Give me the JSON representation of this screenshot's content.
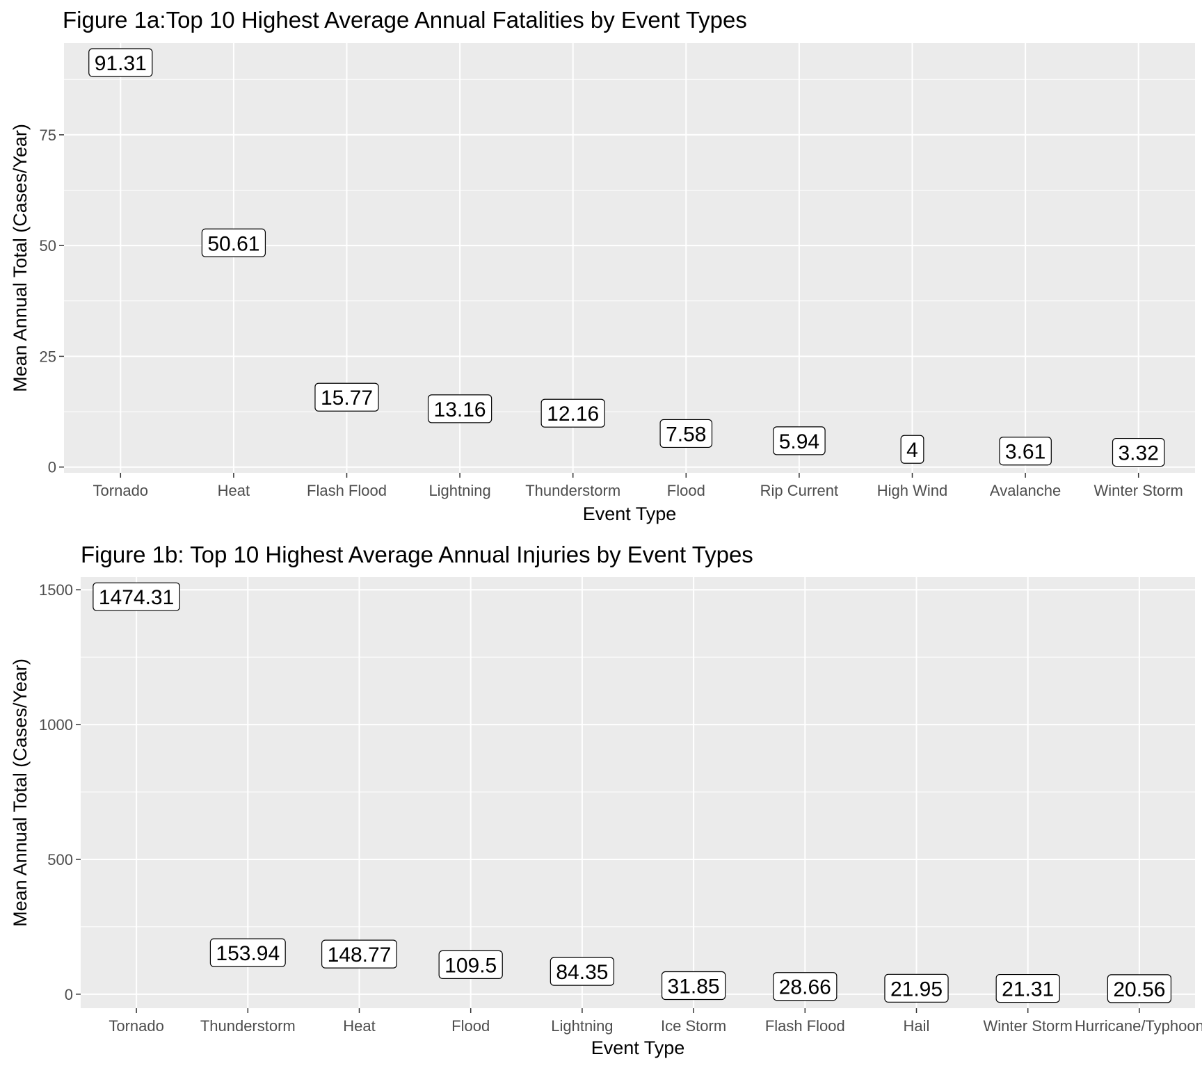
{
  "chart_data": [
    {
      "type": "scatter",
      "geom": "label",
      "title": "Figure 1a:Top 10 Highest Average Annual Fatalities by Event Types",
      "xlabel": "Event Type",
      "ylabel": "Mean Annual Total (Cases/Year)",
      "categories": [
        "Tornado",
        "Heat",
        "Flash Flood",
        "Lightning",
        "Thunderstorm",
        "Flood",
        "Rip Current",
        "High Wind",
        "Avalanche",
        "Winter Storm"
      ],
      "values": [
        91.31,
        50.61,
        15.77,
        13.16,
        12.16,
        7.58,
        5.94,
        4,
        3.61,
        3.32
      ],
      "labels": [
        "91.31",
        "50.61",
        "15.77",
        "13.16",
        "12.16",
        "7.58",
        "5.94",
        "4",
        "3.61",
        "3.32"
      ],
      "yticks": [
        0,
        25,
        50,
        75
      ],
      "ytick_labels": [
        "0",
        "25",
        "50",
        "75"
      ],
      "ylim": [
        -1.3,
        95.7
      ],
      "grid": true,
      "colors": {
        "panel": "#ebebeb",
        "grid": "#ffffff",
        "label_fill": "#ffffff",
        "label_border": "#000000",
        "tick_text": "#4d4d4d",
        "tick_mark": "#333333"
      }
    },
    {
      "type": "scatter",
      "geom": "label",
      "title": "Figure 1b: Top 10 Highest Average Annual Injuries by Event Types",
      "xlabel": "Event Type",
      "ylabel": "Mean Annual Total (Cases/Year)",
      "categories": [
        "Tornado",
        "Thunderstorm",
        "Heat",
        "Flood",
        "Lightning",
        "Ice Storm",
        "Flash Flood",
        "Hail",
        "Winter Storm",
        "Hurricane/Typhoon"
      ],
      "values": [
        1474.31,
        153.94,
        148.77,
        109.5,
        84.35,
        31.85,
        28.66,
        21.95,
        21.31,
        20.56
      ],
      "labels": [
        "1474.31",
        "153.94",
        "148.77",
        "109.5",
        "84.35",
        "31.85",
        "28.66",
        "21.95",
        "21.31",
        "20.56"
      ],
      "yticks": [
        0,
        500,
        1000,
        1500
      ],
      "ytick_labels": [
        "0",
        "500",
        "1000",
        "1500"
      ],
      "ylim": [
        -52,
        1547
      ],
      "grid": true,
      "colors": {
        "panel": "#ebebeb",
        "grid": "#ffffff",
        "label_fill": "#ffffff",
        "label_border": "#000000",
        "tick_text": "#4d4d4d",
        "tick_mark": "#333333"
      }
    }
  ]
}
